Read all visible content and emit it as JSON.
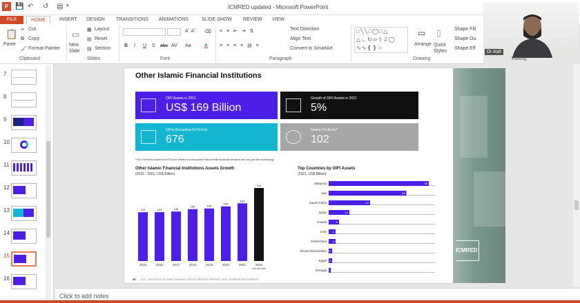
{
  "window": {
    "title": "ICMRED updated - Microsoft PowerPoint"
  },
  "tabs": [
    "FILE",
    "HOME",
    "INSERT",
    "DESIGN",
    "TRANSITIONS",
    "ANIMATIONS",
    "SLIDE SHOW",
    "REVIEW",
    "VIEW"
  ],
  "ribbon": {
    "clipboard": {
      "paste": "Paste",
      "cut": "Cut",
      "copy": "Copy",
      "format_painter": "Format Painter",
      "label": "Clipboard"
    },
    "slides": {
      "new_slide": "New Slide",
      "layout": "Layout",
      "reset": "Reset",
      "section": "Section",
      "label": "Slides"
    },
    "font": {
      "label": "Font",
      "bold": "B",
      "italic": "I",
      "underline": "U",
      "strike": "S",
      "abc": "abc",
      "spacing": "AV",
      "case": "Aa",
      "color": "A"
    },
    "paragraph": {
      "text_direction": "Text Direction",
      "align_text": "Align Text",
      "convert_smartart": "Convert to SmartArt",
      "label": "Paragraph"
    },
    "drawing": {
      "arrange": "Arrange",
      "quick_styles": "Quick Styles",
      "shape_fill": "Shape Fill",
      "shape_outline": "Shape Ou",
      "shape_effects": "Shape Eff",
      "label": "Drawing"
    },
    "editing": {
      "label": "Editing"
    }
  },
  "webcam": {
    "name": "Dr Asif"
  },
  "thumbnails": [
    {
      "num": "7",
      "style": "plain"
    },
    {
      "num": "8",
      "style": "plain"
    },
    {
      "num": "9",
      "style": "dark"
    },
    {
      "num": "10",
      "style": "donut"
    },
    {
      "num": "11",
      "style": "bars"
    },
    {
      "num": "12",
      "style": "purple"
    },
    {
      "num": "13",
      "style": "mixed"
    },
    {
      "num": "14",
      "style": "purple2"
    },
    {
      "num": "15",
      "style": "selected"
    },
    {
      "num": "16",
      "style": "purple3"
    }
  ],
  "slide": {
    "title": "Other Islamic Financial Institutions",
    "kpis": [
      {
        "label": "OIFI Assets in 2021",
        "value": "US$ 169 Billion",
        "color": "#4b1fe8"
      },
      {
        "label": "Growth of OIFI Assets in 2021",
        "value": "5%",
        "color": "#111111"
      },
      {
        "label": "OIFIs (Excluding FinTechs)",
        "value": "676",
        "color": "#12b6d0"
      },
      {
        "label": "Islamic FinTechs*",
        "value": "102",
        "color": "#a6a6a6"
      }
    ],
    "footnote": "*The FinTechs covered in IFDI are limited to companies that provide financial services and not just the technology",
    "page_number": "40",
    "page_footer": "ICD – REFINITIV ISLAMIC FINANCE DEVELOPMENT REPORT 2022: EMBRACING CHANGE"
  },
  "notes_placeholder": "Click to add notes",
  "icmred_label": "ICMRED",
  "chart_data": [
    {
      "type": "bar",
      "title": "Other Islamic Financial Institutions Assets Growth",
      "subtitle": "(2015 - 2021, US$ Billion)",
      "categories": [
        "2015",
        "2016",
        "2017",
        "2018",
        "2019",
        "2020",
        "2021",
        "2026"
      ],
      "category_notes": [
        "",
        "",
        "",
        "",
        "",
        "",
        "",
        "(PROJECTED)"
      ],
      "values": [
        143,
        143,
        145,
        152,
        154,
        160,
        169,
        214
      ],
      "colors": [
        "#4b1fe8",
        "#4b1fe8",
        "#4b1fe8",
        "#4b1fe8",
        "#4b1fe8",
        "#4b1fe8",
        "#4b1fe8",
        "#111111"
      ],
      "ylim": [
        0,
        214
      ]
    },
    {
      "type": "bar",
      "orientation": "horizontal",
      "title": "Top Countries by OIFI Assets",
      "subtitle": "(2021, US$ Billion)",
      "categories": [
        "Malaysia",
        "Iran",
        "Saudi Arabia",
        "Qatar",
        "Kuwait",
        "UAE",
        "Switzerland",
        "Brunei Darussalam",
        "Egypt",
        "Senegal"
      ],
      "values": [
        58,
        45,
        24,
        12,
        6,
        4,
        4,
        2,
        2,
        1
      ],
      "xlim": [
        0,
        60
      ],
      "color": "#4b1fe8"
    }
  ]
}
